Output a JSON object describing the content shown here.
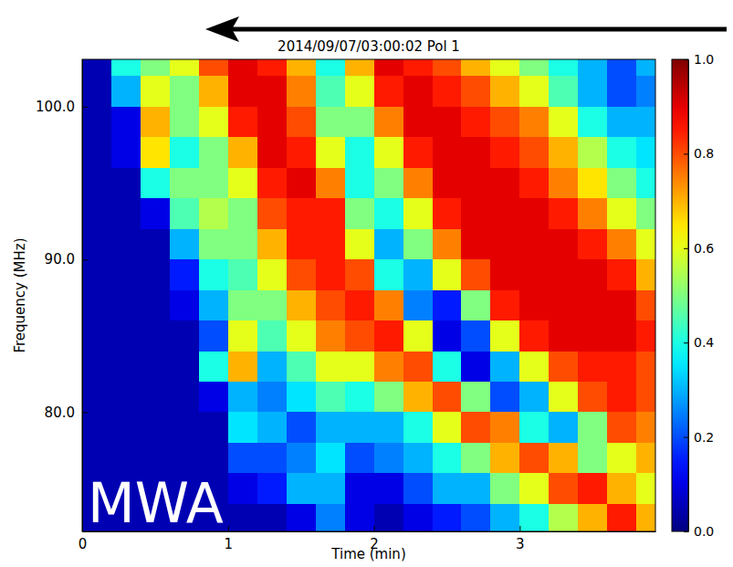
{
  "chart_data": {
    "type": "heatmap",
    "title": "2014/09/07/03:00:02 Pol 1",
    "x_label": "Time (min)",
    "y_label": "Frequency (MHz)",
    "annotation": "MWA",
    "xlim": [
      0,
      3.93
    ],
    "ylim": [
      72.2,
      103.1
    ],
    "xticks": [
      0,
      1,
      2,
      3
    ],
    "yticks": [
      {
        "value": 80,
        "label": "80.0"
      },
      {
        "value": 90,
        "label": "90.0"
      },
      {
        "value": 100,
        "label": "100.0"
      }
    ],
    "x_edges": [
      0,
      0.2,
      0.4,
      0.6,
      0.8,
      1.0,
      1.2,
      1.4,
      1.6,
      1.8,
      2.0,
      2.2,
      2.4,
      2.6,
      2.8,
      3.0,
      3.2,
      3.4,
      3.6,
      3.8,
      3.93
    ],
    "y_edges": [
      103.1,
      102,
      100,
      98,
      96,
      94,
      92,
      90,
      88,
      86,
      84,
      82,
      80,
      78,
      76,
      74,
      72.2
    ],
    "values": [
      [
        0.05,
        0.4,
        0.5,
        0.6,
        0.8,
        0.9,
        0.85,
        0.7,
        0.4,
        0.7,
        0.9,
        0.85,
        0.8,
        0.7,
        0.6,
        0.5,
        0.4,
        0.3,
        0.2,
        0.3
      ],
      [
        0.05,
        0.3,
        0.6,
        0.5,
        0.7,
        0.9,
        0.9,
        0.75,
        0.45,
        0.6,
        0.85,
        0.9,
        0.85,
        0.8,
        0.7,
        0.6,
        0.45,
        0.3,
        0.2,
        0.25
      ],
      [
        0.05,
        0.1,
        0.7,
        0.5,
        0.6,
        0.85,
        0.9,
        0.8,
        0.5,
        0.5,
        0.75,
        0.9,
        0.9,
        0.85,
        0.8,
        0.75,
        0.6,
        0.4,
        0.3,
        0.3
      ],
      [
        0.05,
        0.1,
        0.65,
        0.4,
        0.5,
        0.7,
        0.9,
        0.85,
        0.6,
        0.4,
        0.6,
        0.85,
        0.9,
        0.9,
        0.85,
        0.8,
        0.7,
        0.55,
        0.4,
        0.35
      ],
      [
        0.05,
        0.05,
        0.4,
        0.5,
        0.5,
        0.6,
        0.85,
        0.9,
        0.75,
        0.4,
        0.5,
        0.75,
        0.9,
        0.9,
        0.9,
        0.85,
        0.75,
        0.65,
        0.5,
        0.4
      ],
      [
        0.05,
        0.05,
        0.1,
        0.45,
        0.55,
        0.5,
        0.8,
        0.85,
        0.85,
        0.5,
        0.4,
        0.6,
        0.85,
        0.9,
        0.9,
        0.9,
        0.85,
        0.75,
        0.6,
        0.5
      ],
      [
        0.05,
        0.05,
        0.05,
        0.3,
        0.5,
        0.5,
        0.7,
        0.85,
        0.85,
        0.6,
        0.3,
        0.5,
        0.75,
        0.9,
        0.9,
        0.9,
        0.9,
        0.85,
        0.75,
        0.6
      ],
      [
        0.05,
        0.05,
        0.05,
        0.15,
        0.4,
        0.45,
        0.6,
        0.8,
        0.85,
        0.8,
        0.4,
        0.3,
        0.6,
        0.8,
        0.9,
        0.9,
        0.9,
        0.9,
        0.85,
        0.7
      ],
      [
        0.05,
        0.05,
        0.05,
        0.1,
        0.3,
        0.5,
        0.5,
        0.7,
        0.8,
        0.85,
        0.75,
        0.25,
        0.15,
        0.5,
        0.85,
        0.9,
        0.9,
        0.9,
        0.9,
        0.8
      ],
      [
        0.05,
        0.05,
        0.05,
        0.05,
        0.2,
        0.6,
        0.45,
        0.6,
        0.75,
        0.8,
        0.85,
        0.6,
        0.1,
        0.2,
        0.6,
        0.85,
        0.9,
        0.9,
        0.9,
        0.85
      ],
      [
        0.05,
        0.05,
        0.05,
        0.05,
        0.4,
        0.7,
        0.3,
        0.45,
        0.6,
        0.6,
        0.75,
        0.8,
        0.4,
        0.1,
        0.3,
        0.6,
        0.8,
        0.85,
        0.85,
        0.8
      ],
      [
        0.05,
        0.05,
        0.05,
        0.05,
        0.1,
        0.3,
        0.25,
        0.35,
        0.45,
        0.4,
        0.5,
        0.7,
        0.8,
        0.5,
        0.2,
        0.3,
        0.6,
        0.8,
        0.85,
        0.8
      ],
      [
        0.05,
        0.05,
        0.05,
        0.05,
        0.05,
        0.35,
        0.3,
        0.2,
        0.3,
        0.3,
        0.3,
        0.4,
        0.6,
        0.8,
        0.75,
        0.4,
        0.3,
        0.5,
        0.8,
        0.75
      ],
      [
        0.05,
        0.05,
        0.05,
        0.05,
        0.05,
        0.2,
        0.2,
        0.25,
        0.35,
        0.2,
        0.25,
        0.3,
        0.4,
        0.5,
        0.7,
        0.8,
        0.7,
        0.5,
        0.6,
        0.7
      ],
      [
        0.05,
        0.05,
        0.05,
        0.05,
        0.05,
        0.1,
        0.15,
        0.3,
        0.3,
        0.1,
        0.1,
        0.2,
        0.3,
        0.3,
        0.5,
        0.6,
        0.8,
        0.85,
        0.7,
        0.6
      ],
      [
        0.05,
        0.05,
        0.05,
        0.05,
        0.05,
        0.05,
        0.05,
        0.1,
        0.25,
        0.1,
        0.05,
        0.1,
        0.15,
        0.2,
        0.3,
        0.4,
        0.55,
        0.7,
        0.85,
        0.7
      ]
    ],
    "color_range": [
      0,
      1
    ],
    "color_ticks": [
      {
        "value": 0,
        "label": "0.0"
      },
      {
        "value": 0.2,
        "label": "0.2"
      },
      {
        "value": 0.4,
        "label": "0.4"
      },
      {
        "value": 0.6,
        "label": "0.6"
      },
      {
        "value": 0.8,
        "label": "0.8"
      },
      {
        "value": 1,
        "label": "1.0"
      }
    ]
  }
}
